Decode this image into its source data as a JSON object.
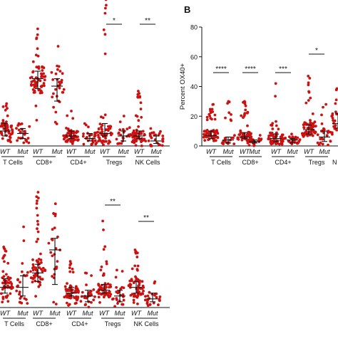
{
  "chart_data": [
    {
      "panel": "A",
      "type": "scatter",
      "panel_label": "",
      "ylabel": "",
      "group_labels": [
        "T Cells",
        "CD8+",
        "CD4+",
        "Tregs",
        "NK Cells"
      ],
      "genotype_labels": [
        "WT",
        "Mut"
      ],
      "point_color": "#cc1111",
      "columns": [
        {
          "group": "T Cells",
          "genotype": "WT",
          "n": 60,
          "median": 6,
          "min": 0,
          "max": 17,
          "errorbar": [
            4,
            9
          ]
        },
        {
          "group": "T Cells",
          "genotype": "Mut",
          "n": 25,
          "median": 5,
          "min": 0,
          "max": 9,
          "errorbar": [
            3,
            7
          ]
        },
        {
          "group": "CD8+",
          "genotype": "WT",
          "n": 65,
          "median": 27,
          "min": 8,
          "max": 47,
          "errorbar": [
            23,
            30
          ]
        },
        {
          "group": "CD8+",
          "genotype": "Mut",
          "n": 30,
          "median": 24,
          "min": 6,
          "max": 40,
          "errorbar": [
            18,
            27
          ]
        },
        {
          "group": "CD4+",
          "genotype": "WT",
          "n": 60,
          "median": 4,
          "min": 0,
          "max": 14,
          "errorbar": [
            3,
            6
          ]
        },
        {
          "group": "CD4+",
          "genotype": "Mut",
          "n": 25,
          "median": 3,
          "min": 0,
          "max": 9,
          "errorbar": [
            2,
            5
          ]
        },
        {
          "group": "Tregs",
          "genotype": "WT",
          "n": 60,
          "median": 5,
          "min": 0,
          "max": 60,
          "errorbar": [
            4,
            9
          ]
        },
        {
          "group": "Tregs",
          "genotype": "Mut",
          "n": 25,
          "median": 4,
          "min": 0,
          "max": 12,
          "errorbar": [
            2,
            6
          ]
        },
        {
          "group": "NK Cells",
          "genotype": "WT",
          "n": 60,
          "median": 4,
          "min": 0,
          "max": 22,
          "errorbar": [
            3,
            6
          ]
        },
        {
          "group": "NK Cells",
          "genotype": "Mut",
          "n": 25,
          "median": 2,
          "min": 0,
          "max": 7,
          "errorbar": [
            1,
            4
          ]
        }
      ],
      "significance": [
        {
          "group": "Tregs",
          "label": "*"
        },
        {
          "group": "NK Cells",
          "label": "**"
        }
      ]
    },
    {
      "panel": "B",
      "type": "scatter",
      "panel_label": "B",
      "ylabel": "Percent OX40+",
      "ylim": [
        0,
        80
      ],
      "yticks": [
        0,
        20,
        40,
        60,
        80
      ],
      "group_labels": [
        "T Cells",
        "CD8+",
        "CD4+",
        "Tregs",
        "N"
      ],
      "genotype_labels": [
        "WT",
        "Mut"
      ],
      "point_color": "#cc1111",
      "columns": [
        {
          "group": "T Cells",
          "genotype": "WT",
          "n": 60,
          "median": 7,
          "min": 0,
          "max": 28,
          "errorbar": [
            5,
            10
          ]
        },
        {
          "group": "T Cells",
          "genotype": "Mut",
          "n": 25,
          "median": 4,
          "min": 0,
          "max": 30,
          "errorbar": [
            2,
            6
          ]
        },
        {
          "group": "CD8+",
          "genotype": "WT",
          "n": 60,
          "median": 6,
          "min": 0,
          "max": 30,
          "errorbar": [
            5,
            9
          ]
        },
        {
          "group": "CD8+",
          "genotype": "Mut",
          "n": 25,
          "median": 3,
          "min": 0,
          "max": 9,
          "errorbar": [
            2,
            4
          ]
        },
        {
          "group": "CD4+",
          "genotype": "WT",
          "n": 60,
          "median": 5,
          "min": 0,
          "max": 42,
          "errorbar": [
            3,
            8
          ]
        },
        {
          "group": "CD4+",
          "genotype": "Mut",
          "n": 25,
          "median": 4,
          "min": 0,
          "max": 8,
          "errorbar": [
            2,
            5
          ]
        },
        {
          "group": "Tregs",
          "genotype": "WT",
          "n": 60,
          "median": 11,
          "min": 0,
          "max": 47,
          "errorbar": [
            8,
            14
          ]
        },
        {
          "group": "Tregs",
          "genotype": "Mut",
          "n": 25,
          "median": 6,
          "min": 0,
          "max": 28,
          "errorbar": [
            3,
            10
          ]
        },
        {
          "group": "N",
          "genotype": "WT",
          "n": 50,
          "median": 15,
          "min": 0,
          "max": 42,
          "errorbar": [
            12,
            22
          ]
        }
      ],
      "significance": [
        {
          "group": "T Cells",
          "label": "****"
        },
        {
          "group": "CD8+",
          "label": "****"
        },
        {
          "group": "CD4+",
          "label": "***"
        },
        {
          "group": "Tregs",
          "label": "*"
        }
      ]
    },
    {
      "panel": "C",
      "type": "scatter",
      "panel_label": "",
      "ylabel": "",
      "group_labels": [
        "T Cells",
        "CD8+",
        "CD4+",
        "Tregs",
        "NK Cells"
      ],
      "genotype_labels": [
        "WT",
        "Mut"
      ],
      "point_color": "#cc1111",
      "columns": [
        {
          "group": "T Cells",
          "genotype": "WT",
          "n": 60,
          "median": 7,
          "min": 0,
          "max": 21,
          "errorbar": [
            5,
            10
          ]
        },
        {
          "group": "T Cells",
          "genotype": "Mut",
          "n": 25,
          "median": 7,
          "min": 0,
          "max": 28,
          "errorbar": [
            4,
            11
          ]
        },
        {
          "group": "CD8+",
          "genotype": "WT",
          "n": 60,
          "median": 12,
          "min": 0,
          "max": 40,
          "errorbar": [
            9,
            15
          ]
        },
        {
          "group": "CD8+",
          "genotype": "Mut",
          "n": 25,
          "median": 20,
          "min": 0,
          "max": 36,
          "errorbar": [
            8,
            24
          ]
        },
        {
          "group": "CD4+",
          "genotype": "WT",
          "n": 60,
          "median": 5,
          "min": 0,
          "max": 16,
          "errorbar": [
            4,
            7
          ]
        },
        {
          "group": "CD4+",
          "genotype": "Mut",
          "n": 25,
          "median": 4,
          "min": 0,
          "max": 12,
          "errorbar": [
            2,
            6
          ]
        },
        {
          "group": "Tregs",
          "genotype": "WT",
          "n": 60,
          "median": 6,
          "min": 0,
          "max": 30,
          "errorbar": [
            5,
            8
          ]
        },
        {
          "group": "Tregs",
          "genotype": "Mut",
          "n": 25,
          "median": 4,
          "min": 0,
          "max": 13,
          "errorbar": [
            2,
            6
          ]
        },
        {
          "group": "NK Cells",
          "genotype": "WT",
          "n": 60,
          "median": 7,
          "min": 0,
          "max": 20,
          "errorbar": [
            5,
            9
          ]
        },
        {
          "group": "NK Cells",
          "genotype": "Mut",
          "n": 25,
          "median": 3,
          "min": 0,
          "max": 9,
          "errorbar": [
            2,
            5
          ]
        }
      ],
      "significance": [
        {
          "group": "Tregs",
          "label": "**"
        },
        {
          "group": "NK Cells",
          "label": "**"
        }
      ]
    }
  ]
}
